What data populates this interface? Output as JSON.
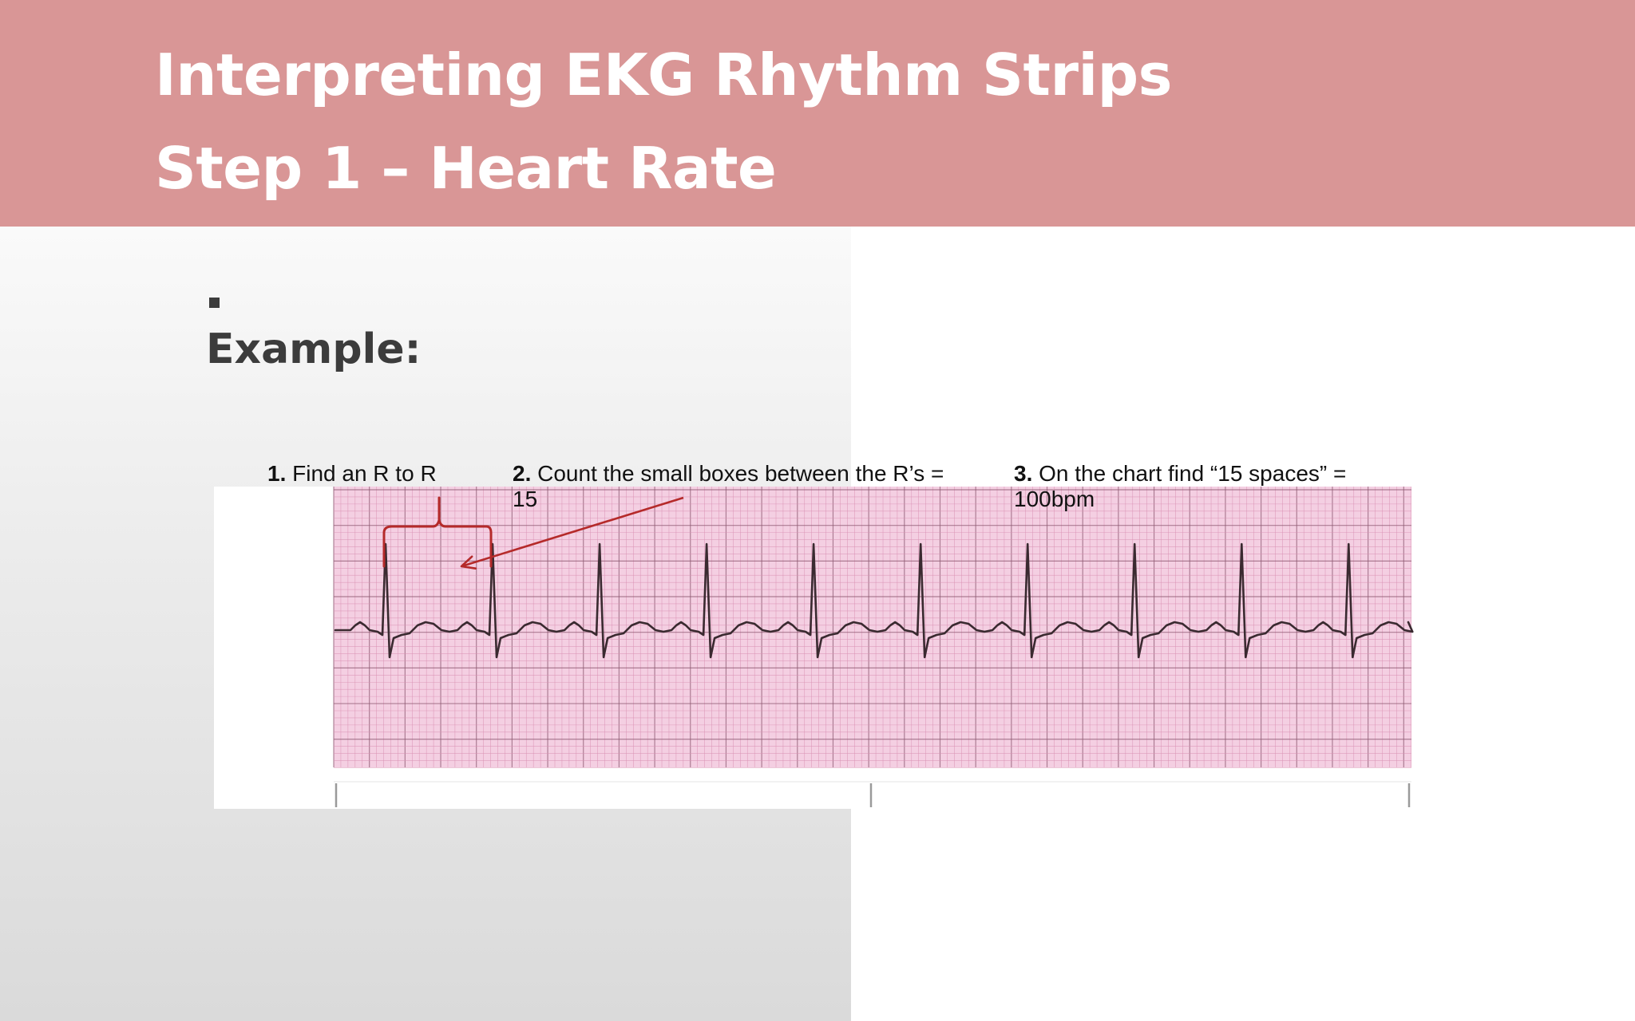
{
  "slide": {
    "title_line1": "Interpreting EKG Rhythm Strips",
    "title_line2": "Step 1 – Heart Rate",
    "bullet_text": "Example:"
  },
  "steps": [
    {
      "number": "1.",
      "text": " Find an R to R"
    },
    {
      "number": "2.",
      "text": " Count the small boxes between the R’s = 15"
    },
    {
      "number": "3.",
      "text": " On the chart find “15 spaces” = 100bpm"
    }
  ],
  "ekg_strip": {
    "beats_shown": 10,
    "small_boxes_between_r_waves": 15,
    "heart_rate_bpm": 100
  },
  "colors": {
    "header_background": "#d99696",
    "title_text": "#ffffff",
    "body_text": "#3c3c3c",
    "grid_paper": "#f4cfe2",
    "grid_minor": "#d98fb2",
    "grid_major": "#8e5a72",
    "trace": "#3a2a30",
    "annotation_red": "#b52a2a"
  }
}
